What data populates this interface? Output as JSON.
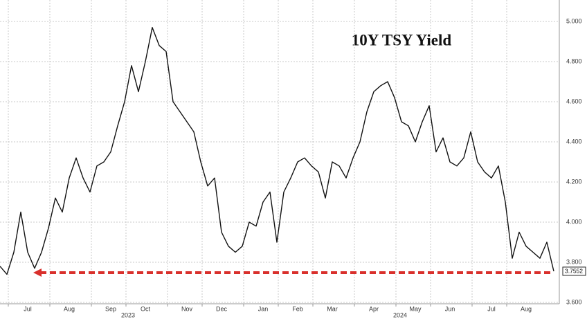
{
  "chart_data": {
    "type": "line",
    "title": "10Y TSY Yield",
    "categories": [
      null,
      null,
      null,
      null,
      "Jul",
      null,
      null,
      null,
      null,
      null,
      "Aug",
      null,
      null,
      null,
      null,
      null,
      "Sep",
      null,
      null,
      null,
      null,
      "Oct",
      null,
      null,
      null,
      null,
      null,
      "Nov",
      null,
      null,
      null,
      null,
      "Dec",
      null,
      null,
      null,
      null,
      null,
      "Jan",
      null,
      null,
      null,
      null,
      "Feb",
      null,
      null,
      null,
      null,
      "Mar",
      null,
      null,
      null,
      null,
      null,
      "Apr",
      null,
      null,
      null,
      null,
      null,
      "May",
      null,
      null,
      null,
      null,
      "Jun",
      null,
      null,
      null,
      null,
      null,
      "Jul",
      null,
      null,
      null,
      null,
      "Aug",
      null,
      null,
      null,
      null
    ],
    "years": [
      "2023",
      "2024"
    ],
    "series": [
      {
        "name": "10Y TSY Yield",
        "color": "#111111",
        "values": [
          3.78,
          3.74,
          3.85,
          4.05,
          3.85,
          3.77,
          3.85,
          3.97,
          4.12,
          4.05,
          4.22,
          4.32,
          4.22,
          4.15,
          4.28,
          4.3,
          4.35,
          4.48,
          4.6,
          4.78,
          4.65,
          4.8,
          4.97,
          4.88,
          4.85,
          4.6,
          4.55,
          4.5,
          4.45,
          4.3,
          4.18,
          4.22,
          3.95,
          3.88,
          3.85,
          3.88,
          4.0,
          3.98,
          4.1,
          4.15,
          3.9,
          4.15,
          4.22,
          4.3,
          4.32,
          4.28,
          4.25,
          4.12,
          4.3,
          4.28,
          4.22,
          4.32,
          4.4,
          4.55,
          4.65,
          4.68,
          4.7,
          4.62,
          4.5,
          4.48,
          4.4,
          4.5,
          4.58,
          4.35,
          4.42,
          4.3,
          4.28,
          4.32,
          4.45,
          4.3,
          4.25,
          4.22,
          4.28,
          4.1,
          3.82,
          3.95,
          3.88,
          3.85,
          3.82,
          3.9,
          3.7552
        ],
        "value_labels": {
          "80": "3.7552"
        }
      }
    ],
    "ylim": [
      3.593,
      5.107
    ],
    "yticks": [
      {
        "value": 3.6,
        "label": "3.600"
      },
      {
        "value": 3.8,
        "label": "3.800"
      },
      {
        "value": 4.0,
        "label": "4.000"
      },
      {
        "value": 4.2,
        "label": "4.200"
      },
      {
        "value": 4.4,
        "label": "4.400"
      },
      {
        "value": 4.6,
        "label": "4.600"
      },
      {
        "value": 4.8,
        "label": "4.800"
      },
      {
        "value": 5.0,
        "label": "5.000"
      }
    ],
    "grid": true,
    "marker_line_color": "#d9302c"
  }
}
